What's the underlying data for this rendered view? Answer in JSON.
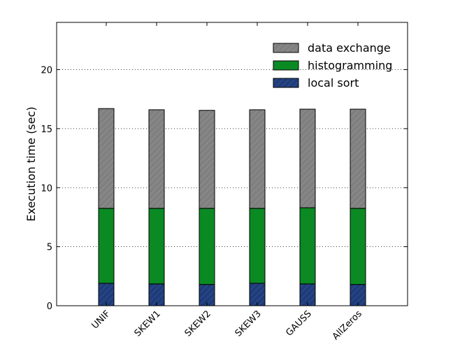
{
  "chart_data": {
    "type": "bar",
    "stacked": true,
    "title": "",
    "xlabel": "",
    "ylabel": "Execution time (sec)",
    "ylim": [
      0,
      24
    ],
    "yticks": [
      0,
      5,
      10,
      15,
      20
    ],
    "grid": "horizontal dotted",
    "legend_position": "top-right",
    "categories": [
      "UNIF",
      "SKEW1",
      "SKEW2",
      "SKEW3",
      "GAUSS",
      "AllZeros"
    ],
    "series": [
      {
        "name": "local sort",
        "color": "#1f3c7a",
        "hatch": "diagonal",
        "values": [
          1.9,
          1.85,
          1.8,
          1.9,
          1.85,
          1.8
        ]
      },
      {
        "name": "histogramming",
        "color": "#0b8a24",
        "hatch": "none",
        "values": [
          6.35,
          6.4,
          6.45,
          6.35,
          6.45,
          6.45
        ]
      },
      {
        "name": "data exchange",
        "color": "#808080",
        "hatch": "diagonal",
        "values": [
          8.45,
          8.35,
          8.3,
          8.35,
          8.35,
          8.4
        ]
      }
    ]
  }
}
